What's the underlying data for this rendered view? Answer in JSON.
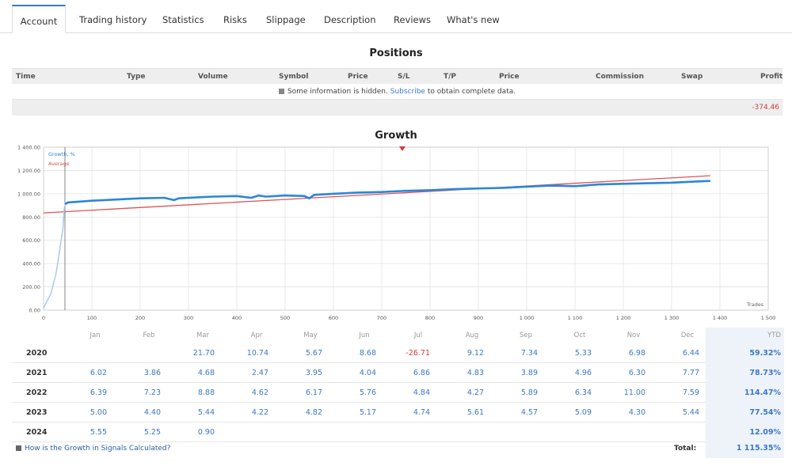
{
  "tabs": [
    {
      "label": "Account",
      "active": true
    },
    {
      "label": "Trading history"
    },
    {
      "label": "Statistics"
    },
    {
      "label": "Risks"
    },
    {
      "label": "Slippage"
    },
    {
      "label": "Description"
    },
    {
      "label": "Reviews"
    },
    {
      "label": "What's new"
    }
  ],
  "positions": {
    "title": "Positions",
    "columns": [
      "Time",
      "Type",
      "Volume",
      "Symbol",
      "Price",
      "S/L",
      "T/P",
      "Price",
      "Commission",
      "Swap",
      "Profit"
    ],
    "hidden_text": "Some information is hidden.",
    "subscribe_link": "Subscribe",
    "hidden_suffix": "to obtain complete data.",
    "total_profit": "-374.46"
  },
  "growth": {
    "title": "Growth",
    "legend_growth": "Growth, %",
    "legend_average": "Average",
    "x_axis_label": "Trades",
    "colors": {
      "growth": "#2b86d9",
      "average": "#e05252",
      "grid": "#e3e3e3"
    }
  },
  "chart_data": {
    "type": "line",
    "title": "Growth",
    "xlabel": "Trades",
    "ylabel": "",
    "xlim": [
      0,
      1500
    ],
    "ylim": [
      0,
      1400
    ],
    "x_ticks": [
      "0",
      "100",
      "200",
      "300",
      "400",
      "500",
      "600",
      "700",
      "800",
      "900",
      "1 000",
      "1 100",
      "1 200",
      "1 300",
      "1 400",
      "1 500"
    ],
    "y_ticks": [
      "0.00",
      "200.00",
      "400.00",
      "600.00",
      "800.00",
      "1 000.00",
      "1 200.00",
      "1 400.00"
    ],
    "legend_position": "top-left",
    "grid": true,
    "series": [
      {
        "name": "Growth, %",
        "x": [
          0,
          5,
          10,
          15,
          20,
          25,
          30,
          35,
          40,
          43,
          45,
          50,
          100,
          150,
          200,
          250,
          270,
          280,
          300,
          350,
          400,
          430,
          445,
          460,
          500,
          540,
          550,
          560,
          600,
          650,
          700,
          750,
          800,
          850,
          900,
          950,
          1000,
          1050,
          1100,
          1150,
          1200,
          1250,
          1300,
          1350,
          1380
        ],
        "y": [
          20,
          60,
          100,
          140,
          220,
          300,
          420,
          560,
          700,
          880,
          910,
          925,
          940,
          950,
          960,
          965,
          945,
          960,
          965,
          975,
          980,
          965,
          985,
          975,
          985,
          980,
          960,
          990,
          1000,
          1010,
          1015,
          1025,
          1030,
          1040,
          1045,
          1050,
          1060,
          1070,
          1065,
          1080,
          1085,
          1090,
          1095,
          1105,
          1110
        ]
      },
      {
        "name": "Average",
        "x": [
          0,
          1380
        ],
        "y": [
          835,
          1155
        ]
      }
    ]
  },
  "monthly": {
    "months": [
      "Jan",
      "Feb",
      "Mar",
      "Apr",
      "May",
      "Jun",
      "Jul",
      "Aug",
      "Sep",
      "Oct",
      "Nov",
      "Dec"
    ],
    "ytd_label": "YTD",
    "rows": [
      {
        "year": "2020",
        "values": [
          "",
          "",
          "21.70",
          "10.74",
          "5.67",
          "8.68",
          "-26.71",
          "9.12",
          "7.34",
          "5.33",
          "6.98",
          "6.44"
        ],
        "ytd": "59.32%"
      },
      {
        "year": "2021",
        "values": [
          "6.02",
          "3.86",
          "4.68",
          "2.47",
          "3.95",
          "4.04",
          "6.86",
          "4.83",
          "3.89",
          "4.96",
          "6.30",
          "7.77"
        ],
        "ytd": "78.73%"
      },
      {
        "year": "2022",
        "values": [
          "6.39",
          "7.23",
          "8.88",
          "4.62",
          "6.17",
          "5.76",
          "4.84",
          "4.27",
          "5.89",
          "6.34",
          "11.00",
          "7.59"
        ],
        "ytd": "114.47%"
      },
      {
        "year": "2023",
        "values": [
          "5.00",
          "4.40",
          "5.44",
          "4.22",
          "4.82",
          "5.17",
          "4.74",
          "5.61",
          "4.57",
          "5.09",
          "4.30",
          "5.44"
        ],
        "ytd": "77.54%"
      },
      {
        "year": "2024",
        "values": [
          "5.55",
          "5.25",
          "0.90",
          "",
          "",
          "",
          "",
          "",
          "",
          "",
          "",
          ""
        ],
        "ytd": "12.09%"
      }
    ],
    "help_link": "How is the Growth in Signals Calculated?",
    "total_label": "Total:",
    "total_value": "1 115.35%"
  }
}
